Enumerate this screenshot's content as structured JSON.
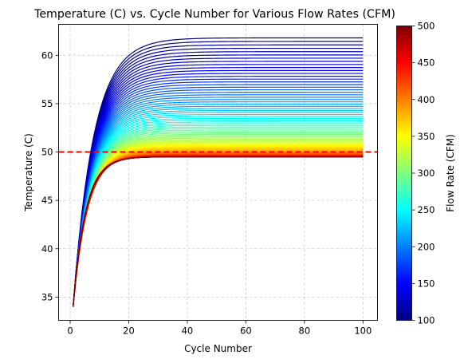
{
  "chart_data": {
    "type": "line",
    "title": "Temperature (C) vs. Cycle Number for Various Flow Rates (CFM)",
    "xlabel": "Cycle Number",
    "ylabel": "Temperature (C)",
    "xlim": [
      -3.95,
      104.95
    ],
    "ylim": [
      32.6,
      63.2
    ],
    "xticks": [
      0,
      20,
      40,
      60,
      80,
      100
    ],
    "yticks": [
      35,
      40,
      45,
      50,
      55,
      60
    ],
    "grid": true,
    "grid_style": "dashed",
    "colormap": "jet",
    "colorbar": {
      "label": "Flow Rate (CFM)",
      "range": [
        100,
        500
      ],
      "ticks": [
        100,
        150,
        200,
        250,
        300,
        350,
        400,
        450,
        500
      ]
    },
    "series_family": {
      "description_param": "flow_rate",
      "flow_rate_start": 100,
      "flow_rate_end": 500,
      "flow_rate_step": 5,
      "x_start": 1,
      "x_end": 100,
      "start_temperature": 34,
      "plateau_at_100cfm": 61.8,
      "plateau_at_500cfm": 49.5,
      "rise_constant_at_100cfm": 7.0,
      "rise_constant_at_500cfm": 4.2
    },
    "reference_line": {
      "y": 50,
      "color": "#ff0000",
      "style": "dashed"
    }
  }
}
